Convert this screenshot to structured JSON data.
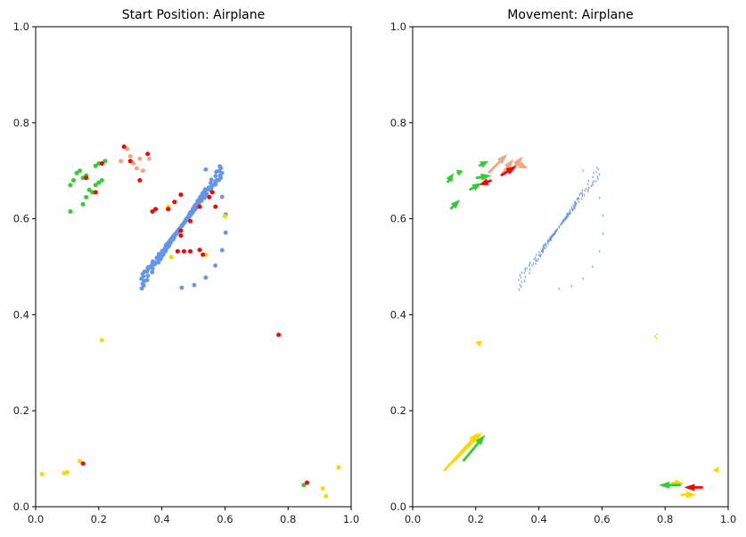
{
  "colors": {
    "face": "#6495ed",
    "hand_left": "#32cd32",
    "hand_right": "#ffd700",
    "pose": "#ff0000",
    "arm": "#f4a582"
  },
  "chart_data": [
    {
      "type": "scatter",
      "title": "Start Position: Airplane",
      "xlim": [
        0,
        1
      ],
      "ylim": [
        0,
        1
      ],
      "xticks": [
        "0.0",
        "0.2",
        "0.4",
        "0.6",
        "0.8",
        "1.0"
      ],
      "yticks": [
        "0.0",
        "0.2",
        "0.4",
        "0.6",
        "0.8",
        "1.0"
      ],
      "grid": false,
      "face_outline": {
        "center": [
          0.463,
          0.585
        ],
        "radius_x": 0.145,
        "radius_y": 0.125,
        "bottom_y": 0.45,
        "top_y": 0.71
      },
      "series": [
        {
          "color_key": "hand_left",
          "points": [
            [
              0.11,
              0.615
            ],
            [
              0.11,
              0.67
            ],
            [
              0.12,
              0.68
            ],
            [
              0.13,
              0.695
            ],
            [
              0.14,
              0.7
            ],
            [
              0.15,
              0.63
            ],
            [
              0.16,
              0.645
            ],
            [
              0.17,
              0.66
            ],
            [
              0.18,
              0.655
            ],
            [
              0.19,
              0.67
            ],
            [
              0.2,
              0.675
            ],
            [
              0.21,
              0.68
            ],
            [
              0.15,
              0.685
            ],
            [
              0.16,
              0.69
            ],
            [
              0.19,
              0.71
            ],
            [
              0.2,
              0.715
            ],
            [
              0.21,
              0.715
            ],
            [
              0.22,
              0.72
            ],
            [
              0.85,
              0.045
            ]
          ]
        },
        {
          "color_key": "arm",
          "points": [
            [
              0.27,
              0.72
            ],
            [
              0.29,
              0.745
            ],
            [
              0.3,
              0.73
            ],
            [
              0.31,
              0.715
            ],
            [
              0.32,
              0.705
            ],
            [
              0.33,
              0.725
            ],
            [
              0.34,
              0.7
            ],
            [
              0.36,
              0.725
            ]
          ]
        },
        {
          "color_key": "hand_right",
          "points": [
            [
              0.21,
              0.347
            ],
            [
              0.02,
              0.068
            ],
            [
              0.09,
              0.07
            ],
            [
              0.1,
              0.072
            ],
            [
              0.14,
              0.095
            ],
            [
              0.91,
              0.038
            ],
            [
              0.92,
              0.022
            ],
            [
              0.96,
              0.082
            ],
            [
              0.43,
              0.52
            ],
            [
              0.42,
              0.625
            ],
            [
              0.54,
              0.525
            ],
            [
              0.6,
              0.605
            ]
          ]
        },
        {
          "color_key": "pose",
          "points": [
            [
              0.28,
              0.75
            ],
            [
              0.3,
              0.72
            ],
            [
              0.33,
              0.68
            ],
            [
              0.355,
              0.735
            ],
            [
              0.16,
              0.685
            ],
            [
              0.19,
              0.655
            ],
            [
              0.21,
              0.715
            ],
            [
              0.37,
              0.615
            ],
            [
              0.38,
              0.62
            ],
            [
              0.42,
              0.62
            ],
            [
              0.44,
              0.635
            ],
            [
              0.46,
              0.65
            ],
            [
              0.49,
              0.595
            ],
            [
              0.46,
              0.575
            ],
            [
              0.46,
              0.565
            ],
            [
              0.52,
              0.625
            ],
            [
              0.55,
              0.645
            ],
            [
              0.56,
              0.655
            ],
            [
              0.57,
              0.625
            ],
            [
              0.45,
              0.532
            ],
            [
              0.47,
              0.532
            ],
            [
              0.49,
              0.532
            ],
            [
              0.52,
              0.535
            ],
            [
              0.53,
              0.525
            ],
            [
              0.77,
              0.358
            ],
            [
              0.15,
              0.09
            ],
            [
              0.86,
              0.05
            ]
          ]
        }
      ]
    },
    {
      "type": "quiver",
      "title": "Movement: Airplane",
      "xlim": [
        0,
        1
      ],
      "ylim": [
        0,
        1
      ],
      "xticks": [
        "0.0",
        "0.2",
        "0.4",
        "0.6",
        "0.8",
        "1.0"
      ],
      "yticks": [
        "0.0",
        "0.2",
        "0.4",
        "0.6",
        "0.8",
        "1.0"
      ],
      "grid": false,
      "face_outline": {
        "center": [
          0.463,
          0.585
        ],
        "radius_x": 0.145,
        "radius_y": 0.125,
        "bottom_y": 0.45,
        "top_y": 0.71
      },
      "arrows": [
        {
          "color_key": "arm",
          "x": 0.24,
          "y": 0.695,
          "dx": 0.06,
          "dy": 0.04
        },
        {
          "color_key": "arm",
          "x": 0.28,
          "y": 0.69,
          "dx": 0.04,
          "dy": 0.035
        },
        {
          "color_key": "arm",
          "x": 0.31,
          "y": 0.7,
          "dx": 0.04,
          "dy": 0.03
        },
        {
          "color_key": "arm",
          "x": 0.33,
          "y": 0.715,
          "dx": 0.035,
          "dy": -0.01
        },
        {
          "color_key": "pose",
          "x": 0.25,
          "y": 0.68,
          "dx": -0.04,
          "dy": -0.01
        },
        {
          "color_key": "pose",
          "x": 0.28,
          "y": 0.69,
          "dx": 0.05,
          "dy": 0.02
        },
        {
          "color_key": "hand_left",
          "x": 0.12,
          "y": 0.62,
          "dx": 0.03,
          "dy": 0.02
        },
        {
          "color_key": "hand_left",
          "x": 0.18,
          "y": 0.66,
          "dx": 0.04,
          "dy": 0.015
        },
        {
          "color_key": "hand_left",
          "x": 0.2,
          "y": 0.685,
          "dx": 0.05,
          "dy": 0.005
        },
        {
          "color_key": "hand_left",
          "x": 0.11,
          "y": 0.675,
          "dx": 0.02,
          "dy": 0.02
        },
        {
          "color_key": "hand_left",
          "x": 0.14,
          "y": 0.695,
          "dx": 0.02,
          "dy": 0.005
        },
        {
          "color_key": "hand_left",
          "x": 0.21,
          "y": 0.71,
          "dx": 0.03,
          "dy": 0.01
        },
        {
          "color_key": "hand_right",
          "x": 0.1,
          "y": 0.075,
          "dx": 0.11,
          "dy": 0.08
        },
        {
          "color_key": "hand_right",
          "x": 0.13,
          "y": 0.095,
          "dx": 0.09,
          "dy": 0.06
        },
        {
          "color_key": "hand_left",
          "x": 0.16,
          "y": 0.095,
          "dx": 0.07,
          "dy": 0.055
        },
        {
          "color_key": "hand_right",
          "x": 0.82,
          "y": 0.05,
          "dx": 0.04,
          "dy": -0.002
        },
        {
          "color_key": "hand_left",
          "x": 0.85,
          "y": 0.045,
          "dx": -0.07,
          "dy": 0.0
        },
        {
          "color_key": "hand_right",
          "x": 0.85,
          "y": 0.025,
          "dx": 0.05,
          "dy": 0.0
        },
        {
          "color_key": "pose",
          "x": 0.92,
          "y": 0.04,
          "dx": -0.06,
          "dy": 0.0
        },
        {
          "color_key": "hand_right",
          "x": 0.96,
          "y": 0.08,
          "dx": 0.01,
          "dy": -0.01
        },
        {
          "color_key": "hand_right",
          "x": 0.21,
          "y": 0.345,
          "dx": 0.003,
          "dy": -0.012
        },
        {
          "color_key": "hand_right",
          "x": 0.77,
          "y": 0.355,
          "dx": -0.006,
          "dy": 0.0
        }
      ]
    }
  ]
}
